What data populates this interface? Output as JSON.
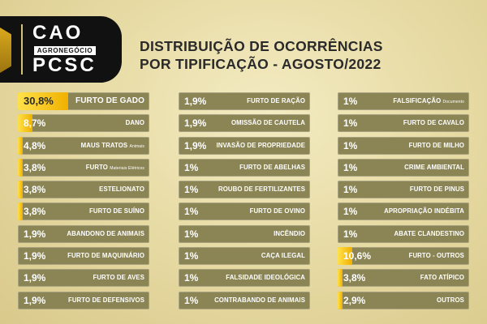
{
  "logo": {
    "top": "CAO",
    "middle": "AGRONEGÓCIO",
    "bottom": "PCSC"
  },
  "title": {
    "line1": "DISTRIBUIÇÃO DE OCORRÊNCIAS",
    "line2": "POR TIPIFICAÇÃO - AGOSTO/2022"
  },
  "colors": {
    "bar": "#8b8556",
    "highlight": "#f5c400",
    "title": "#2a2a2a",
    "background": "#ece2ad"
  },
  "columns": [
    [
      {
        "pct": "30,8%",
        "value": 30.8,
        "label": "FURTO DE GADO",
        "sub": ""
      },
      {
        "pct": "8,7%",
        "value": 8.7,
        "label": "DANO",
        "sub": ""
      },
      {
        "pct": "4,8%",
        "value": 4.8,
        "label": "MAUS TRATOS",
        "sub": "Animais"
      },
      {
        "pct": "3,8%",
        "value": 3.8,
        "label": "FURTO",
        "sub": "Materiais Elétricos"
      },
      {
        "pct": "3,8%",
        "value": 3.8,
        "label": "ESTELIONATO",
        "sub": ""
      },
      {
        "pct": "3,8%",
        "value": 3.8,
        "label": "FURTO DE SUÍNO",
        "sub": ""
      },
      {
        "pct": "1,9%",
        "value": 1.9,
        "label": "ABANDONO DE ANIMAIS",
        "sub": ""
      },
      {
        "pct": "1,9%",
        "value": 1.9,
        "label": "FURTO DE MAQUINÁRIO",
        "sub": ""
      },
      {
        "pct": "1,9%",
        "value": 1.9,
        "label": "FURTO DE AVES",
        "sub": ""
      },
      {
        "pct": "1,9%",
        "value": 1.9,
        "label": "FURTO DE DEFENSIVOS",
        "sub": ""
      }
    ],
    [
      {
        "pct": "1,9%",
        "value": 1.9,
        "label": "FURTO DE RAÇÃO",
        "sub": ""
      },
      {
        "pct": "1,9%",
        "value": 1.9,
        "label": "OMISSÃO DE CAUTELA",
        "sub": ""
      },
      {
        "pct": "1,9%",
        "value": 1.9,
        "label": "INVASÃO DE PROPRIEDADE",
        "sub": ""
      },
      {
        "pct": "1%",
        "value": 1,
        "label": "FURTO DE ABELHAS",
        "sub": ""
      },
      {
        "pct": "1%",
        "value": 1,
        "label": "ROUBO DE FERTILIZANTES",
        "sub": ""
      },
      {
        "pct": "1%",
        "value": 1,
        "label": "FURTO DE OVINO",
        "sub": ""
      },
      {
        "pct": "1%",
        "value": 1,
        "label": "INCÊNDIO",
        "sub": ""
      },
      {
        "pct": "1%",
        "value": 1,
        "label": "CAÇA ILEGAL",
        "sub": ""
      },
      {
        "pct": "1%",
        "value": 1,
        "label": "FALSIDADE IDEOLÓGICA",
        "sub": ""
      },
      {
        "pct": "1%",
        "value": 1,
        "label": "CONTRABANDO DE ANIMAIS",
        "sub": ""
      }
    ],
    [
      {
        "pct": "1%",
        "value": 1,
        "label": "FALSIFICAÇÃO",
        "sub": "Documento"
      },
      {
        "pct": "1%",
        "value": 1,
        "label": "FURTO DE CAVALO",
        "sub": ""
      },
      {
        "pct": "1%",
        "value": 1,
        "label": "FURTO DE MILHO",
        "sub": ""
      },
      {
        "pct": "1%",
        "value": 1,
        "label": "CRIME AMBIENTAL",
        "sub": ""
      },
      {
        "pct": "1%",
        "value": 1,
        "label": "FURTO DE PINUS",
        "sub": ""
      },
      {
        "pct": "1%",
        "value": 1,
        "label": "APROPRIAÇÃO INDÉBITA",
        "sub": ""
      },
      {
        "pct": "1%",
        "value": 1,
        "label": "ABATE CLANDESTINO",
        "sub": ""
      },
      {
        "pct": "10,6%",
        "value": 10.6,
        "label": "FURTO - OUTROS",
        "sub": ""
      },
      {
        "pct": "3,8%",
        "value": 3.8,
        "label": "FATO ATÍPICO",
        "sub": ""
      },
      {
        "pct": "2,9%",
        "value": 2.9,
        "label": "OUTROS",
        "sub": ""
      }
    ]
  ]
}
